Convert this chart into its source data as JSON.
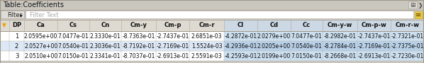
{
  "title": "Table:Coefficients",
  "filter_label": "Filter",
  "filter_placeholder": "Filter Text",
  "columns": [
    "▼",
    "DP",
    "Ca",
    "Cs",
    "Cn",
    "Cm-y",
    "Cm-p",
    "Cm-r",
    "Cl",
    "Cd",
    "Cc",
    "Cm-y-w",
    "Cm-p-w",
    "Cm-r-w"
  ],
  "rows": [
    [
      "",
      "1",
      "2.0595e+00",
      "7.0477e-01",
      "2.3330e-01",
      "-8.7363e-01",
      "-2.7437e-01",
      "2.6851e-03",
      "-4.2872e-01",
      "2.0279e+00",
      "7.0477e-01",
      "-8.2982e-01",
      "-2.7437e-01",
      "-2.7321e-01"
    ],
    [
      "",
      "2",
      "2.0527e+00",
      "7.0540e-01",
      "2.3036e-01",
      "-8.7192e-01",
      "-2.7169e-01",
      "1.5524e-03",
      "-4.2936e-01",
      "2.0205e+00",
      "7.0540e-01",
      "-8.2784e-01",
      "-2.7169e-01",
      "-2.7375e-01"
    ],
    [
      "",
      "3",
      "2.0510e+00",
      "7.0150e-01",
      "2.3341e-01",
      "-8.7037e-01",
      "-2.6913e-01",
      "2.5591e-03",
      "-4.2593e-01",
      "2.0199e+00",
      "7.0150e-01",
      "-8.2668e-01",
      "-2.6913e-01",
      "-2.7230e-01"
    ]
  ],
  "title_bg": "#cac7bf",
  "title_text_color": "#1a1a1a",
  "filter_area_bg": "#d4d0c8",
  "filter_btn_bg": "#e0ddd8",
  "filter_btn_border": "#a09890",
  "filter_box_bg": "#ffffff",
  "filter_placeholder_color": "#aaaaaa",
  "header_bg": "#dedad2",
  "header_text_color": "#111111",
  "row_bg": [
    "#ffffff",
    "#dce8f5",
    "#ffffff"
  ],
  "highlight_col_bg": [
    "#cde0f0",
    "#b8d0e8",
    "#cde0f0"
  ],
  "sep_color": "#b8b0a8",
  "text_color": "#111111",
  "border_color": "#a0988a",
  "settings_icon_bg": "#e8c840",
  "funnel_color": "#f0a000"
}
